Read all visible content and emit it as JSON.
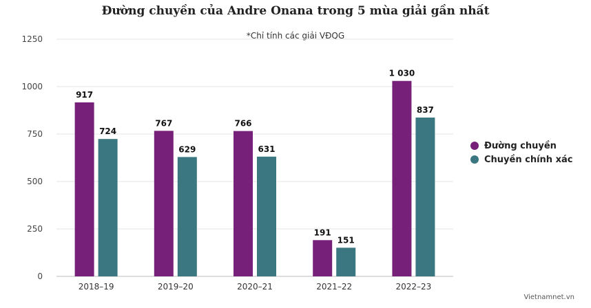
{
  "chart_data": {
    "type": "bar",
    "title": "Đường chuyền của Andre Onana trong 5 mùa giải gần nhất",
    "subtitle": "*Chỉ tính các giải VĐQG",
    "xlabel": "",
    "ylabel": "",
    "categories": [
      "2018–19",
      "2019–20",
      "2020–21",
      "2021–22",
      "2022–23"
    ],
    "series": [
      {
        "name": "Đường chuyền",
        "values": [
          917,
          767,
          766,
          191,
          1030
        ],
        "labels": [
          "917",
          "767",
          "766",
          "191",
          "1 030"
        ],
        "color": "#76207a"
      },
      {
        "name": "Chuyền chính xác",
        "values": [
          724,
          629,
          631,
          151,
          837
        ],
        "labels": [
          "724",
          "629",
          "631",
          "151",
          "837"
        ],
        "color": "#3b7780"
      }
    ],
    "ylim": [
      0,
      1250
    ],
    "yticks": [
      0,
      250,
      500,
      750,
      1000,
      1250
    ],
    "grid": true,
    "legend_position": "right"
  },
  "source": "Vietnamnet.vn"
}
